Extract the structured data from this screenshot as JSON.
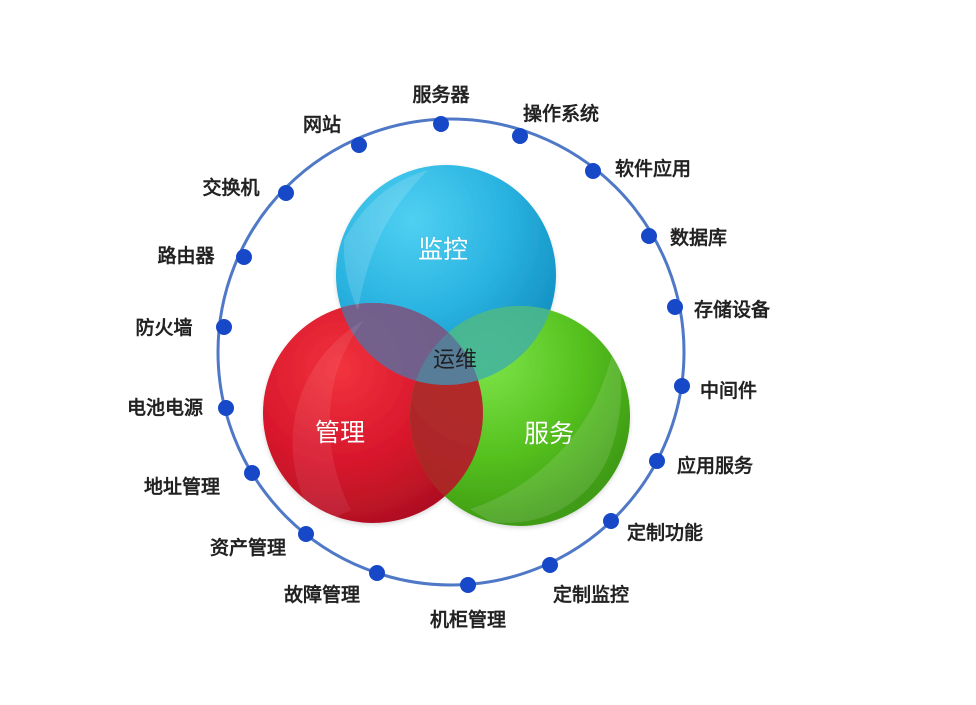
{
  "diagram": {
    "center_labels": {
      "monitor": "监控",
      "manage": "管理",
      "service": "服务",
      "ops": "运维"
    },
    "colors": {
      "ring": "#4f79c7",
      "node": "#1748c7",
      "monitor": "#2bb4e1",
      "manage": "#d7162c",
      "service": "#55c11f",
      "text": "#222222"
    },
    "nodes": [
      {
        "id": "server",
        "label": "服务器"
      },
      {
        "id": "os",
        "label": "操作系统"
      },
      {
        "id": "software-app",
        "label": "软件应用"
      },
      {
        "id": "database",
        "label": "数据库"
      },
      {
        "id": "storage",
        "label": "存储设备"
      },
      {
        "id": "middleware",
        "label": "中间件"
      },
      {
        "id": "app-service",
        "label": "应用服务"
      },
      {
        "id": "custom-function",
        "label": "定制功能"
      },
      {
        "id": "custom-monitor",
        "label": "定制监控"
      },
      {
        "id": "cabinet-management",
        "label": "机柜管理"
      },
      {
        "id": "fault-management",
        "label": "故障管理"
      },
      {
        "id": "asset-management",
        "label": "资产管理"
      },
      {
        "id": "address-management",
        "label": "地址管理"
      },
      {
        "id": "battery-power",
        "label": "电池电源"
      },
      {
        "id": "firewall",
        "label": "防火墙"
      },
      {
        "id": "router",
        "label": "路由器"
      },
      {
        "id": "switch",
        "label": "交换机"
      },
      {
        "id": "website",
        "label": "网站"
      }
    ]
  }
}
